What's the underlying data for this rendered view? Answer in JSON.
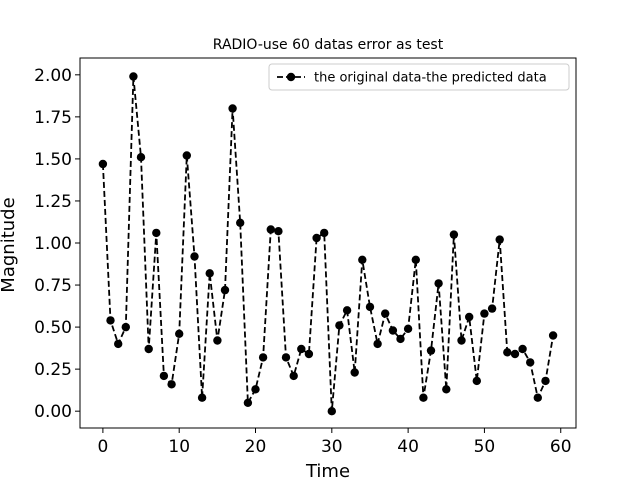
{
  "chart_data": {
    "type": "line",
    "title": "RADIO-use 60 datas error as test",
    "xlabel": "Time",
    "ylabel": "Magnitude",
    "xlim": [
      -3,
      62
    ],
    "ylim": [
      -0.1,
      2.1
    ],
    "xticks": [
      0,
      10,
      20,
      30,
      40,
      50,
      60
    ],
    "yticks": [
      0.0,
      0.25,
      0.5,
      0.75,
      1.0,
      1.25,
      1.5,
      1.75,
      2.0
    ],
    "ytick_labels": [
      "0.00",
      "0.25",
      "0.50",
      "0.75",
      "1.00",
      "1.25",
      "1.50",
      "1.75",
      "2.00"
    ],
    "grid": false,
    "legend_position": "top-right",
    "series": [
      {
        "name": "the original data-the predicted data",
        "color": "#000000",
        "linestyle": "dashed",
        "marker": "circle",
        "x": [
          0,
          1,
          2,
          3,
          4,
          5,
          6,
          7,
          8,
          9,
          10,
          11,
          12,
          13,
          14,
          15,
          16,
          17,
          18,
          19,
          20,
          21,
          22,
          23,
          24,
          25,
          26,
          27,
          28,
          29,
          30,
          31,
          32,
          33,
          34,
          35,
          36,
          37,
          38,
          39,
          40,
          41,
          42,
          43,
          44,
          45,
          46,
          47,
          48,
          49,
          50,
          51,
          52,
          53,
          54,
          55,
          56,
          57,
          58,
          59
        ],
        "y": [
          1.47,
          0.54,
          0.4,
          0.5,
          1.99,
          1.51,
          0.37,
          1.06,
          0.21,
          0.16,
          0.46,
          1.52,
          0.92,
          0.08,
          0.82,
          0.42,
          0.72,
          1.8,
          1.12,
          0.05,
          0.13,
          0.32,
          1.08,
          1.07,
          0.32,
          0.21,
          0.37,
          0.34,
          1.03,
          1.06,
          0.0,
          0.51,
          0.6,
          0.23,
          0.9,
          0.62,
          0.4,
          0.58,
          0.48,
          0.43,
          0.49,
          0.9,
          0.08,
          0.36,
          0.76,
          0.13,
          1.05,
          0.42,
          0.56,
          0.18,
          0.58,
          0.61,
          1.02,
          0.35,
          0.34,
          0.37,
          0.29,
          0.08,
          0.18,
          0.45
        ]
      }
    ]
  }
}
